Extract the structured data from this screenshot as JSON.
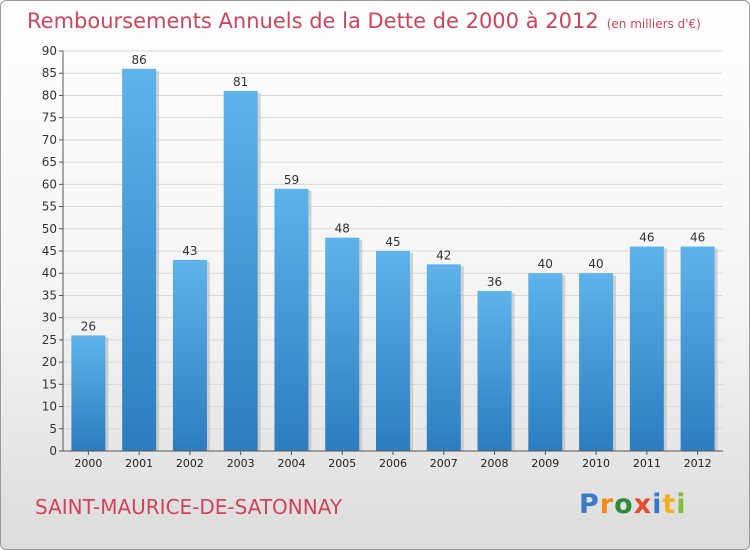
{
  "title": "Remboursements Annuels de la Dette de 2000 à 2012",
  "unit_note": "(en milliers d'€)",
  "commune": "SAINT-MAURICE-DE-SATONNAY",
  "logo": {
    "text": "Proxiti",
    "letters": [
      {
        "ch": "P",
        "color": "#3a78c8"
      },
      {
        "ch": "r",
        "color": "#f08a1c"
      },
      {
        "ch": "o",
        "color": "#2e8a3a"
      },
      {
        "ch": "x",
        "color": "#e64a2a"
      },
      {
        "ch": "i",
        "color": "#3a78c8"
      },
      {
        "ch": "t",
        "color": "#f0b020"
      },
      {
        "ch": "i",
        "color": "#7fbf3a"
      }
    ]
  },
  "colors": {
    "accent": "#d1435a",
    "bar_top": "#5db3ea",
    "bar_bottom": "#2b7dc0"
  },
  "chart_data": {
    "type": "bar",
    "title": "Remboursements Annuels de la Dette de 2000 à 2012",
    "xlabel": "",
    "ylabel": "",
    "categories": [
      "2000",
      "2001",
      "2002",
      "2003",
      "2004",
      "2005",
      "2006",
      "2007",
      "2008",
      "2009",
      "2010",
      "2011",
      "2012"
    ],
    "values": [
      26,
      86,
      43,
      81,
      59,
      48,
      45,
      42,
      36,
      40,
      40,
      46,
      46
    ],
    "ylim": [
      0,
      90
    ],
    "yticks": [
      0,
      5,
      10,
      15,
      20,
      25,
      30,
      35,
      40,
      45,
      50,
      55,
      60,
      65,
      70,
      75,
      80,
      85,
      90
    ],
    "grid": true,
    "data_labels": true
  }
}
